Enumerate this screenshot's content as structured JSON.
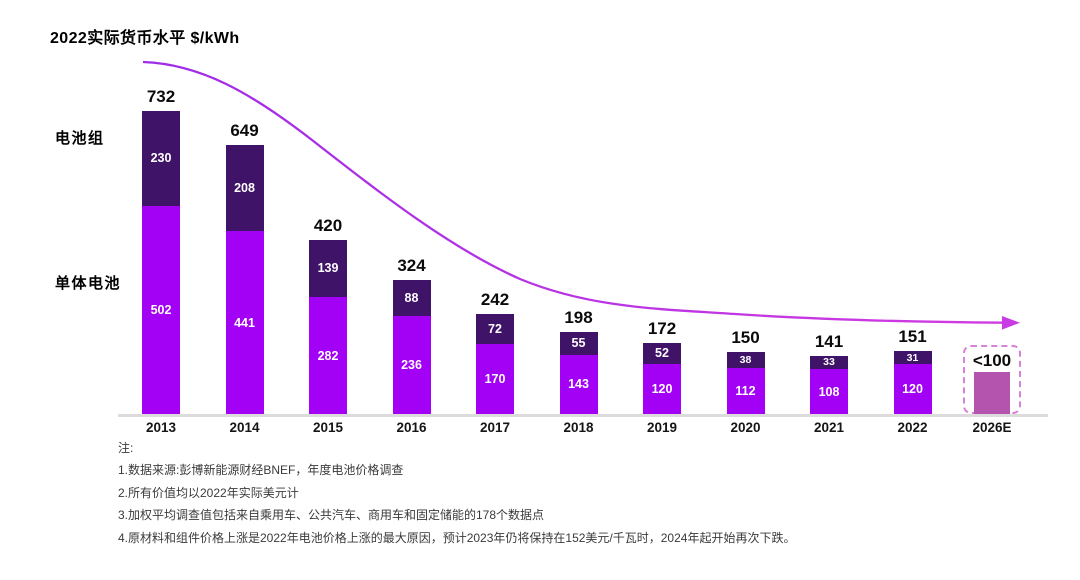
{
  "title": "2022实际货币水平 $/kWh",
  "axis_labels": {
    "pack": "电池组",
    "cell": "单体电池"
  },
  "chart_data": {
    "type": "bar",
    "stacked": true,
    "unit": "$/kWh",
    "categories": [
      "2013",
      "2014",
      "2015",
      "2016",
      "2017",
      "2018",
      "2019",
      "2020",
      "2021",
      "2022",
      "2026E"
    ],
    "series": [
      {
        "name": "单体电池",
        "color": "#A201F5",
        "values": [
          502,
          441,
          282,
          236,
          170,
          143,
          120,
          112,
          108,
          120
        ]
      },
      {
        "name": "电池组",
        "color": "#3E1368",
        "values": [
          230,
          208,
          139,
          88,
          72,
          55,
          52,
          38,
          33,
          31
        ]
      }
    ],
    "totals": [
      732,
      649,
      420,
      324,
      242,
      198,
      172,
      150,
      141,
      151
    ],
    "forecast": {
      "category": "2026E",
      "label": "<100",
      "approx_value": 95,
      "bar_color": "#B554AE",
      "box_border_color": "#D981D6"
    },
    "ylim": [
      0,
      780
    ],
    "grid": false,
    "legend": "none",
    "trend_line": {
      "shape": "smooth-decay-with-arrow",
      "color_start": "#9F2BE8",
      "color_end": "#D23BE0"
    },
    "value_label_color": "#FFFFFF",
    "axis_line_color": "#DCDCDC"
  },
  "notes": {
    "heading": "注:",
    "items": [
      "1.数据来源:彭博新能源财经BNEF，年度电池价格调查",
      "2.所有价值均以2022年实际美元计",
      "3.加权平均调查值包括来自乘用车、公共汽车、商用车和固定储能的178个数据点",
      "4.原材料和组件价格上涨是2022年电池价格上涨的最大原因，预计2023年仍将保持在152美元/千瓦时，2024年起开始再次下跌。"
    ]
  }
}
